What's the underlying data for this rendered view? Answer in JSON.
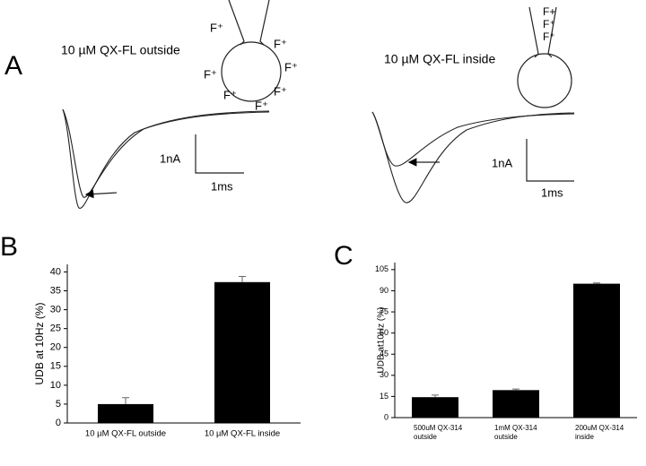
{
  "panel_labels": [
    "A",
    "B",
    "C"
  ],
  "panel_a": {
    "left": {
      "title": "10 µM  QX-FL outside",
      "scale_y": "1nA",
      "scale_x": "1ms",
      "f_labels": [
        "F⁺",
        "F⁺",
        "F⁺",
        "F⁺",
        "F⁺",
        "F⁺",
        "F⁺"
      ]
    },
    "right": {
      "title": "10 µM QX-FL inside",
      "scale_y": "1nA",
      "scale_x": "1ms",
      "f_labels": [
        "F+",
        "F⁺",
        "F⁺"
      ]
    }
  },
  "chart_data": [
    {
      "type": "bar",
      "ylabel": "UDB at 10Hz (%)",
      "categories": [
        [
          "10 µM QX-FL outside"
        ],
        [
          "10 µM QX-FL inside"
        ]
      ],
      "values": [
        5,
        37.3
      ],
      "errors": [
        1.7,
        1.5
      ],
      "color": "#000000",
      "ylim": [
        0,
        42
      ],
      "yticks": [
        0,
        5,
        10,
        15,
        20,
        25,
        30,
        35,
        40
      ]
    },
    {
      "type": "bar",
      "ylabel": "UDB at10Hz (%)",
      "categories": [
        [
          "500uM QX-314",
          "outside"
        ],
        [
          "1mM QX-314",
          "outside"
        ],
        [
          "200uM QX-314",
          "inside"
        ]
      ],
      "values": [
        14.5,
        19.5,
        95
      ],
      "errors": [
        1.5,
        0.8,
        0.5
      ],
      "color": "#000000",
      "ylim": [
        0,
        110
      ],
      "yticks": [
        0,
        15,
        30,
        45,
        60,
        75,
        90,
        105
      ]
    }
  ]
}
